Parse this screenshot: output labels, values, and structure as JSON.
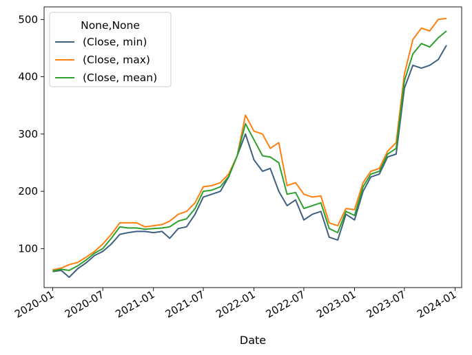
{
  "chart_data": {
    "type": "line",
    "title": "",
    "xlabel": "Date",
    "ylabel": "",
    "x_ticks": [
      "2020-01",
      "2020-07",
      "2021-01",
      "2021-07",
      "2022-01",
      "2022-07",
      "2023-01",
      "2023-07",
      "2024-01"
    ],
    "y_ticks": [
      100,
      200,
      300,
      400,
      500
    ],
    "xlim": [
      "2019-12-01",
      "2024-01-25"
    ],
    "ylim": [
      32,
      522
    ],
    "grid": false,
    "legend": {
      "title": "None,None",
      "placement": "top-left"
    },
    "x": [
      "2020-01-01",
      "2020-02-01",
      "2020-03-01",
      "2020-04-01",
      "2020-05-01",
      "2020-06-01",
      "2020-07-01",
      "2020-08-01",
      "2020-09-01",
      "2020-10-01",
      "2020-11-01",
      "2020-12-01",
      "2021-01-01",
      "2021-02-01",
      "2021-03-01",
      "2021-04-01",
      "2021-05-01",
      "2021-06-01",
      "2021-07-01",
      "2021-08-01",
      "2021-09-01",
      "2021-10-01",
      "2021-11-01",
      "2021-12-01",
      "2022-01-01",
      "2022-02-01",
      "2022-03-01",
      "2022-04-01",
      "2022-05-01",
      "2022-06-01",
      "2022-07-01",
      "2022-08-01",
      "2022-09-01",
      "2022-10-01",
      "2022-11-01",
      "2022-12-01",
      "2023-01-01",
      "2023-02-01",
      "2023-03-01",
      "2023-04-01",
      "2023-05-01",
      "2023-06-01",
      "2023-07-01",
      "2023-08-01",
      "2023-09-01",
      "2023-10-01",
      "2023-11-01",
      "2023-12-01"
    ],
    "series": [
      {
        "name": "(Close, min)",
        "color": "#3d5f80",
        "values": [
          60,
          62,
          50,
          65,
          75,
          88,
          95,
          108,
          125,
          128,
          130,
          130,
          128,
          130,
          118,
          135,
          138,
          160,
          190,
          195,
          200,
          225,
          262,
          300,
          255,
          235,
          240,
          200,
          175,
          185,
          150,
          160,
          165,
          120,
          115,
          160,
          150,
          200,
          225,
          230,
          260,
          265,
          380,
          420,
          415,
          420,
          430,
          455
        ]
      },
      {
        "name": "(Close, max)",
        "color": "#ff7f0e",
        "values": [
          63,
          66,
          72,
          76,
          85,
          95,
          108,
          125,
          145,
          145,
          145,
          138,
          140,
          142,
          148,
          160,
          165,
          180,
          208,
          210,
          215,
          230,
          262,
          333,
          305,
          300,
          275,
          285,
          210,
          215,
          195,
          190,
          192,
          145,
          140,
          170,
          168,
          215,
          235,
          240,
          270,
          285,
          405,
          465,
          485,
          480,
          500,
          502
        ]
      },
      {
        "name": "(Close, mean)",
        "color": "#2ca02c",
        "values": [
          61,
          64,
          62,
          70,
          80,
          92,
          100,
          118,
          138,
          136,
          136,
          134,
          135,
          136,
          138,
          148,
          152,
          170,
          200,
          202,
          208,
          226,
          262,
          318,
          290,
          262,
          260,
          250,
          195,
          198,
          170,
          175,
          180,
          135,
          128,
          165,
          158,
          208,
          230,
          235,
          265,
          275,
          393,
          440,
          458,
          452,
          468,
          480
        ]
      }
    ]
  }
}
